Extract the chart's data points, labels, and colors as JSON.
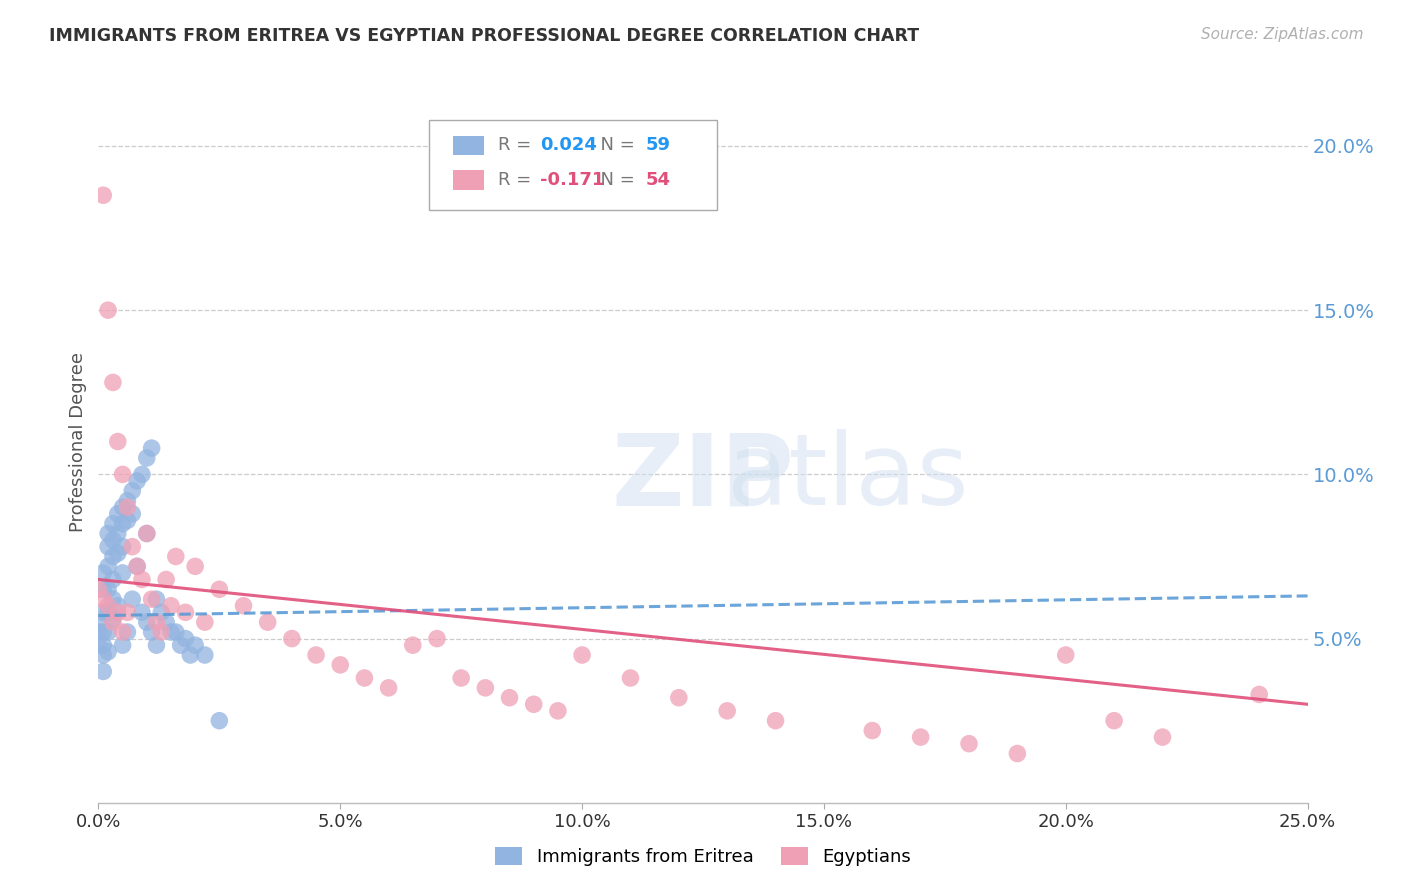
{
  "title": "IMMIGRANTS FROM ERITREA VS EGYPTIAN PROFESSIONAL DEGREE CORRELATION CHART",
  "source": "Source: ZipAtlas.com",
  "ylabel": "Professional Degree",
  "right_ytick_labels": [
    "5.0%",
    "10.0%",
    "15.0%",
    "20.0%"
  ],
  "right_ytick_values": [
    0.05,
    0.1,
    0.15,
    0.2
  ],
  "xlim": [
    0.0,
    0.25
  ],
  "ylim": [
    0.0,
    0.22
  ],
  "xtick_labels": [
    "0.0%",
    "5.0%",
    "10.0%",
    "15.0%",
    "20.0%",
    "25.0%"
  ],
  "xtick_values": [
    0.0,
    0.05,
    0.1,
    0.15,
    0.2,
    0.25
  ],
  "series1_label": "Immigrants from Eritrea",
  "series1_R": "0.024",
  "series1_N": "59",
  "series1_color": "#92b4e0",
  "series1_x": [
    0.0,
    0.0,
    0.0,
    0.001,
    0.001,
    0.001,
    0.001,
    0.001,
    0.001,
    0.001,
    0.002,
    0.002,
    0.002,
    0.002,
    0.002,
    0.002,
    0.002,
    0.003,
    0.003,
    0.003,
    0.003,
    0.003,
    0.003,
    0.004,
    0.004,
    0.004,
    0.004,
    0.005,
    0.005,
    0.005,
    0.005,
    0.005,
    0.006,
    0.006,
    0.006,
    0.007,
    0.007,
    0.007,
    0.008,
    0.008,
    0.009,
    0.009,
    0.01,
    0.01,
    0.01,
    0.011,
    0.011,
    0.012,
    0.012,
    0.013,
    0.014,
    0.015,
    0.016,
    0.017,
    0.018,
    0.019,
    0.02,
    0.022,
    0.025
  ],
  "series1_y": [
    0.055,
    0.052,
    0.048,
    0.07,
    0.065,
    0.058,
    0.052,
    0.048,
    0.045,
    0.04,
    0.082,
    0.078,
    0.072,
    0.065,
    0.058,
    0.052,
    0.046,
    0.085,
    0.08,
    0.075,
    0.068,
    0.062,
    0.056,
    0.088,
    0.082,
    0.076,
    0.06,
    0.09,
    0.085,
    0.078,
    0.07,
    0.048,
    0.092,
    0.086,
    0.052,
    0.095,
    0.088,
    0.062,
    0.098,
    0.072,
    0.1,
    0.058,
    0.105,
    0.082,
    0.055,
    0.108,
    0.052,
    0.062,
    0.048,
    0.058,
    0.055,
    0.052,
    0.052,
    0.048,
    0.05,
    0.045,
    0.048,
    0.045,
    0.025
  ],
  "series2_label": "Egyptians",
  "series2_R": "-0.171",
  "series2_N": "54",
  "series2_color": "#f0a0b5",
  "series2_x": [
    0.0,
    0.001,
    0.001,
    0.002,
    0.002,
    0.003,
    0.003,
    0.004,
    0.004,
    0.005,
    0.005,
    0.006,
    0.006,
    0.007,
    0.008,
    0.009,
    0.01,
    0.011,
    0.012,
    0.013,
    0.014,
    0.015,
    0.016,
    0.018,
    0.02,
    0.022,
    0.025,
    0.03,
    0.035,
    0.04,
    0.045,
    0.05,
    0.055,
    0.06,
    0.065,
    0.07,
    0.075,
    0.08,
    0.085,
    0.09,
    0.095,
    0.1,
    0.11,
    0.12,
    0.13,
    0.14,
    0.16,
    0.17,
    0.18,
    0.19,
    0.2,
    0.21,
    0.22,
    0.24
  ],
  "series2_y": [
    0.065,
    0.185,
    0.062,
    0.15,
    0.06,
    0.128,
    0.055,
    0.11,
    0.058,
    0.1,
    0.052,
    0.09,
    0.058,
    0.078,
    0.072,
    0.068,
    0.082,
    0.062,
    0.055,
    0.052,
    0.068,
    0.06,
    0.075,
    0.058,
    0.072,
    0.055,
    0.065,
    0.06,
    0.055,
    0.05,
    0.045,
    0.042,
    0.038,
    0.035,
    0.048,
    0.05,
    0.038,
    0.035,
    0.032,
    0.03,
    0.028,
    0.045,
    0.038,
    0.032,
    0.028,
    0.025,
    0.022,
    0.02,
    0.018,
    0.015,
    0.045,
    0.025,
    0.02,
    0.033
  ],
  "background_color": "#ffffff",
  "grid_color": "#cccccc",
  "title_color": "#333333",
  "axis_label_color": "#555555",
  "right_axis_color": "#5b9bd5",
  "trend1_color": "#5b9bd5",
  "trend2_color": "#e0507a",
  "legend_R1_color": "#2196F3",
  "legend_N1_color": "#2196F3",
  "legend_R2_color": "#e0507a",
  "legend_N2_color": "#e0507a",
  "trend1_y0": 0.057,
  "trend1_y1": 0.063,
  "trend2_y0": 0.068,
  "trend2_y1": 0.03
}
